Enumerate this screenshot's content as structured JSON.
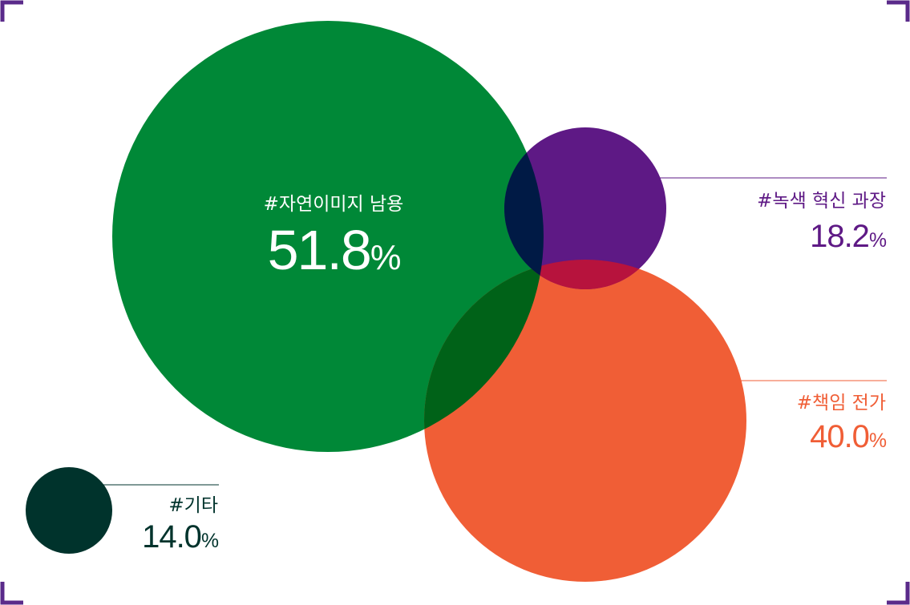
{
  "chart_data": {
    "type": "bubble",
    "unit": "%",
    "series": [
      {
        "tag": "#자연이미지 남용",
        "value": 51.8,
        "value_text": "51.8",
        "color": "#008837"
      },
      {
        "tag": "#녹색 혁신 과장",
        "value": 18.2,
        "value_text": "18.2",
        "color": "#5e1985"
      },
      {
        "tag": "#책임 전가",
        "value": 40.0,
        "value_text": "40.0",
        "color": "#f05e36"
      },
      {
        "tag": "#기타",
        "value": 14.0,
        "value_text": "14.0",
        "color": "#00332c"
      }
    ],
    "overlap_colors": {
      "green_purple": "#001a45",
      "green_orange": "#006218",
      "purple_orange": "#b7133d"
    }
  },
  "frame": {
    "corner_color": "#5a2a8a"
  }
}
